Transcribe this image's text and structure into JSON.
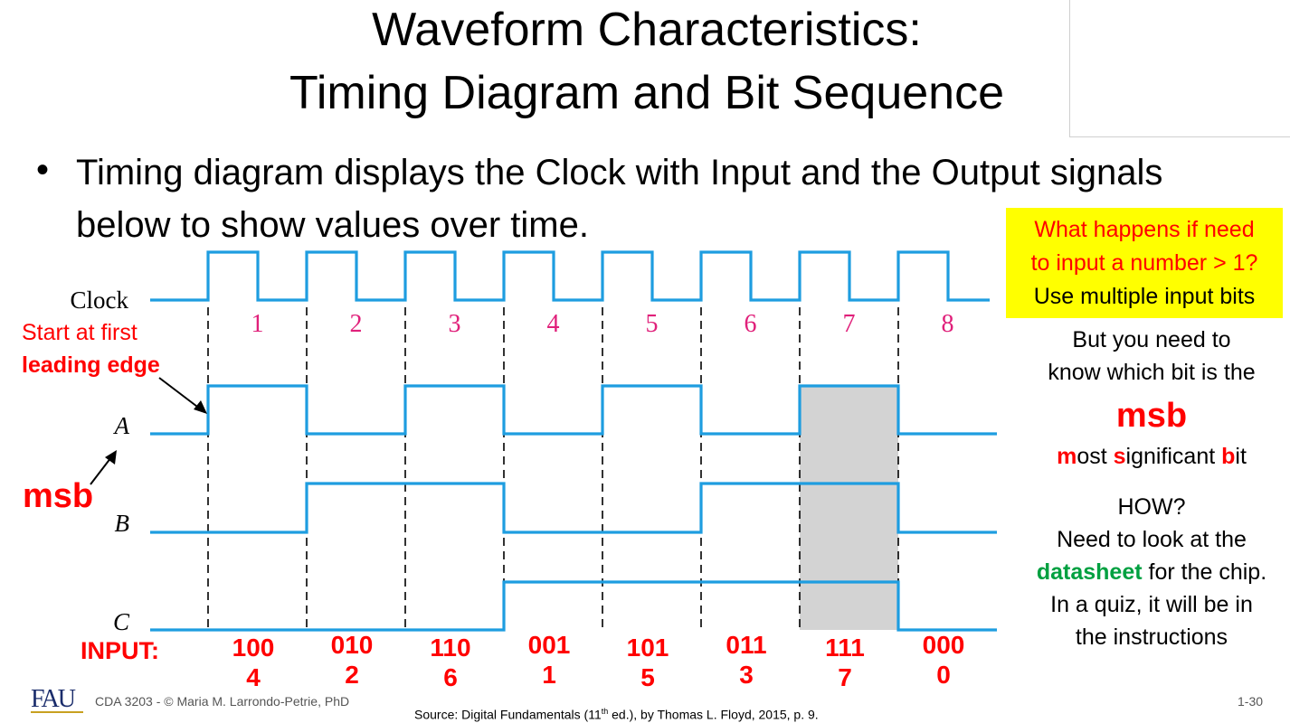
{
  "title": {
    "line1": "Waveform Characteristics:",
    "line2": "Timing Diagram and Bit Sequence"
  },
  "bullet": {
    "symbol": "•",
    "text": "Timing diagram displays the Clock with Input and the Output signals below to show values over time."
  },
  "diagram": {
    "signals": {
      "clock": "Clock",
      "a": "A",
      "b": "B",
      "c": "C"
    },
    "pulse_numbers": [
      "1",
      "2",
      "3",
      "4",
      "5",
      "6",
      "7",
      "8"
    ],
    "a_bits": [
      1,
      0,
      1,
      0,
      1,
      0,
      1,
      0
    ],
    "b_bits": [
      0,
      1,
      1,
      0,
      0,
      1,
      1,
      0
    ],
    "c_bits": [
      0,
      0,
      0,
      1,
      1,
      1,
      1,
      0
    ],
    "highlighted_period": 7,
    "colors": {
      "wave": "#1e9de0",
      "pulse_number": "#e0207a",
      "highlight": "#d3d3d3",
      "accent": "#ff0000"
    }
  },
  "annotations": {
    "start_line1": "Start at first",
    "start_line2": "leading edge",
    "msb_left": "msb",
    "input_label": "INPUT:"
  },
  "inputs": [
    {
      "bits": "100",
      "dec": "4"
    },
    {
      "bits": "010",
      "dec": "2"
    },
    {
      "bits": "110",
      "dec": "6"
    },
    {
      "bits": "001",
      "dec": "1"
    },
    {
      "bits": "101",
      "dec": "5"
    },
    {
      "bits": "011",
      "dec": "3"
    },
    {
      "bits": "111",
      "dec": "7"
    },
    {
      "bits": "000",
      "dec": "0"
    }
  ],
  "callout": {
    "question_line1": "What happens if need",
    "question_line2": "to input a number > 1?",
    "answer": "Use multiple input bits",
    "bg_color": "#ffff00"
  },
  "side": {
    "line1": "But you need to",
    "line2": "know which bit is the",
    "msb": "msb",
    "msb_m": "m",
    "msb_ost": "ost ",
    "msb_s": "s",
    "msb_ignificant": "ignificant ",
    "msb_b": "b",
    "msb_it": "it",
    "how": "HOW?",
    "need": "Need to look at the",
    "datasheet": "datasheet",
    "for_chip": " for the chip.",
    "quiz": "In a quiz, it will  be in",
    "instructions": "the instructions"
  },
  "footer": {
    "logo": "FAU",
    "course": "CDA 3203 - © Maria M. Larrondo-Petrie, PhD",
    "source_pre": "Source: Digital Fundamentals (11",
    "source_sup": "th",
    "source_post": " ed.), by Thomas L. Floyd, 2015, p. 9.",
    "slide_num": "1-30"
  }
}
